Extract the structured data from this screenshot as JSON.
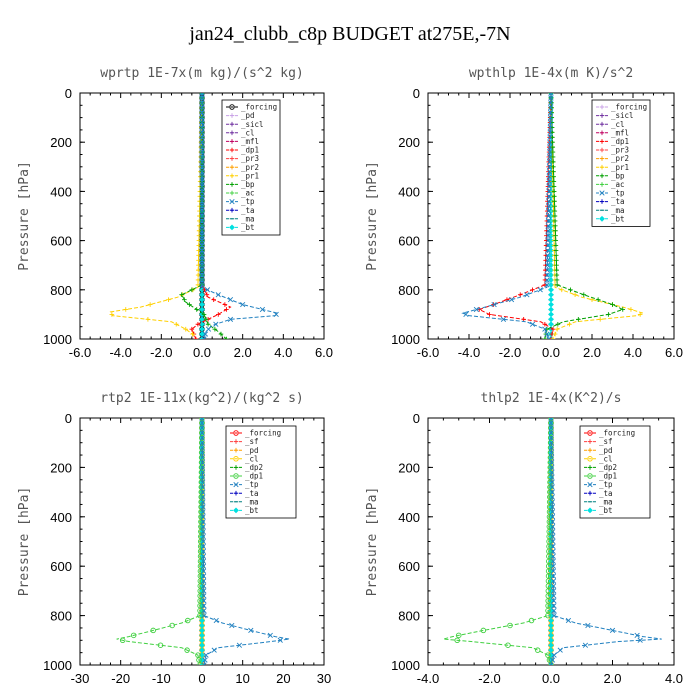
{
  "figure": {
    "title": "jan24_clubb_c8p  BUDGET at275E,-7N"
  },
  "chart_data": [
    {
      "type": "line",
      "title": "wprtp  1E-7x(m kg)/(s^2 kg)",
      "ylabel": "Pressure [hPa]",
      "xlabel": "",
      "xlim": [
        -6,
        6
      ],
      "ylim": [
        1000,
        0
      ],
      "xticks": [
        "-6.0",
        "-4.0",
        "-2.0",
        "0.0",
        "2.0",
        "4.0",
        "6.0"
      ],
      "yticks": [
        "0",
        "200",
        "400",
        "600",
        "800",
        "1000"
      ],
      "legend": [
        "_forcing",
        "_pd",
        "_sicl",
        "_cl",
        "_mfl",
        "_dp1",
        "_pr3",
        "_pr2",
        "_pr1",
        "_bp",
        "_ac",
        "_tp",
        "_ta",
        "_ma",
        "_bt"
      ],
      "series": [
        {
          "name": "_forcing",
          "color": "#000000",
          "marker": "o",
          "p": [
            0,
            500,
            780,
            850,
            900,
            950,
            1000
          ],
          "x": [
            0,
            0,
            0,
            0,
            0,
            0,
            0
          ]
        },
        {
          "name": "_pd",
          "color": "#c8a0e6",
          "marker": "+",
          "p": [
            0,
            780,
            870,
            950,
            1000
          ],
          "x": [
            0,
            0,
            0,
            0,
            0
          ]
        },
        {
          "name": "_sicl",
          "color": "#7030a0",
          "marker": "+",
          "p": [
            0,
            800,
            900,
            1000
          ],
          "x": [
            0,
            0,
            0,
            0
          ]
        },
        {
          "name": "_cl",
          "color": "#7030a0",
          "marker": "+",
          "p": [
            0,
            800,
            900,
            1000
          ],
          "x": [
            0,
            0,
            0,
            0
          ]
        },
        {
          "name": "_mfl",
          "color": "#c00060",
          "marker": "+",
          "p": [
            0,
            800,
            1000
          ],
          "x": [
            0,
            0,
            0
          ]
        },
        {
          "name": "_dp1",
          "color": "#ff0000",
          "marker": "+",
          "p": [
            0,
            780,
            830,
            870,
            900,
            940,
            960,
            1000
          ],
          "x": [
            0,
            0,
            0.3,
            1.4,
            0.8,
            -0.2,
            -0.5,
            -0.3
          ]
        },
        {
          "name": "_pr3",
          "color": "#ff4040",
          "marker": "+",
          "p": [
            0,
            800,
            1000
          ],
          "x": [
            0,
            0,
            0
          ]
        },
        {
          "name": "_pr2",
          "color": "#ffa000",
          "marker": "+",
          "p": [
            0,
            800,
            1000
          ],
          "x": [
            0,
            0,
            0
          ]
        },
        {
          "name": "_pr1",
          "color": "#ffd000",
          "marker": "+",
          "p": [
            0,
            790,
            830,
            870,
            890,
            905,
            930,
            960,
            990
          ],
          "x": [
            0,
            -0.2,
            -1.2,
            -3.0,
            -4.5,
            -4.4,
            -1.5,
            -0.8,
            -0.3
          ]
        },
        {
          "name": "_bp",
          "color": "#00a000",
          "marker": "+",
          "p": [
            0,
            780,
            820,
            850,
            900,
            940,
            970,
            1000
          ],
          "x": [
            0,
            0,
            -1.0,
            -0.8,
            0.1,
            0.3,
            0.8,
            1.2
          ]
        },
        {
          "name": "_ac",
          "color": "#40d040",
          "marker": "+",
          "p": [
            0,
            800,
            1000
          ],
          "x": [
            0,
            0,
            0
          ]
        },
        {
          "name": "_tp",
          "color": "#2080c0",
          "marker": "x",
          "p": [
            0,
            790,
            820,
            860,
            895,
            905,
            920,
            945,
            970,
            1000
          ],
          "x": [
            0,
            0,
            0.8,
            2.0,
            3.7,
            3.6,
            1.4,
            0.5,
            0.2,
            0.1
          ]
        },
        {
          "name": "_ta",
          "color": "#0000c0",
          "marker": "+",
          "p": [
            0,
            800,
            1000
          ],
          "x": [
            0,
            0,
            0
          ]
        },
        {
          "name": "_ma",
          "color": "#008080",
          "marker": "-",
          "p": [
            0,
            800,
            1000
          ],
          "x": [
            0,
            0,
            0
          ]
        },
        {
          "name": "_bt",
          "color": "#00e0e0",
          "marker": "d",
          "p": [
            0,
            800,
            1000
          ],
          "x": [
            0,
            0,
            0
          ]
        }
      ]
    },
    {
      "type": "line",
      "title": "wpthlp  1E-4x(m K)/s^2",
      "ylabel": "Pressure [hPa]",
      "xlabel": "",
      "xlim": [
        -6,
        6
      ],
      "ylim": [
        1000,
        0
      ],
      "xticks": [
        "-6.0",
        "-4.0",
        "-2.0",
        "0.0",
        "2.0",
        "4.0",
        "6.0"
      ],
      "yticks": [
        "0",
        "200",
        "400",
        "600",
        "800",
        "1000"
      ],
      "legend": [
        "_forcing",
        "_sicl",
        "_cl",
        "_mfl",
        "_dp1",
        "_pr3",
        "_pr2",
        "_pr1",
        "_bp",
        "_ac",
        "_tp",
        "_ta",
        "_ma",
        "_bt"
      ],
      "series": [
        {
          "name": "_forcing",
          "color": "#c8a0e6",
          "marker": "+",
          "p": [
            0,
            1000
          ],
          "x": [
            0,
            0
          ]
        },
        {
          "name": "_sicl",
          "color": "#7030a0",
          "marker": "+",
          "p": [
            0,
            1000
          ],
          "x": [
            0,
            0
          ]
        },
        {
          "name": "_cl",
          "color": "#7030a0",
          "marker": "+",
          "p": [
            0,
            1000
          ],
          "x": [
            0,
            0
          ]
        },
        {
          "name": "_mfl",
          "color": "#c00060",
          "marker": "+",
          "p": [
            0,
            1000
          ],
          "x": [
            0,
            0
          ]
        },
        {
          "name": "_dp1",
          "color": "#ff0000",
          "marker": "+",
          "p": [
            0,
            780,
            820,
            860,
            880,
            900,
            930,
            960,
            1000
          ],
          "x": [
            0,
            -0.3,
            -1.5,
            -2.8,
            -3.5,
            -3.0,
            -0.5,
            0.1,
            0
          ]
        },
        {
          "name": "_pr3",
          "color": "#ff4040",
          "marker": "+",
          "p": [
            0,
            1000
          ],
          "x": [
            0,
            0
          ]
        },
        {
          "name": "_pr2",
          "color": "#ffa000",
          "marker": "+",
          "p": [
            0,
            1000
          ],
          "x": [
            0,
            0
          ]
        },
        {
          "name": "_pr1",
          "color": "#ffd000",
          "marker": "+",
          "p": [
            0,
            790,
            830,
            870,
            895,
            905,
            930,
            960,
            1000
          ],
          "x": [
            0,
            0.2,
            1.5,
            3.5,
            4.5,
            4.2,
            1.2,
            0.3,
            0.1
          ]
        },
        {
          "name": "_bp",
          "color": "#00a000",
          "marker": "+",
          "p": [
            0,
            780,
            820,
            860,
            880,
            900,
            930,
            960,
            1000
          ],
          "x": [
            0,
            0.3,
            1.6,
            3.0,
            3.5,
            2.8,
            0.6,
            -0.2,
            -0.3
          ]
        },
        {
          "name": "_ac",
          "color": "#40d040",
          "marker": "+",
          "p": [
            0,
            1000
          ],
          "x": [
            0,
            0
          ]
        },
        {
          "name": "_tp",
          "color": "#2080c0",
          "marker": "x",
          "p": [
            0,
            790,
            830,
            870,
            895,
            905,
            930,
            960,
            1000
          ],
          "x": [
            0,
            -0.2,
            -1.5,
            -3.2,
            -4.3,
            -4.0,
            -1.2,
            -0.3,
            -0.1
          ]
        },
        {
          "name": "_ta",
          "color": "#0000c0",
          "marker": "+",
          "p": [
            0,
            1000
          ],
          "x": [
            0,
            0
          ]
        },
        {
          "name": "_ma",
          "color": "#008080",
          "marker": "-",
          "p": [
            0,
            1000
          ],
          "x": [
            0,
            0
          ]
        },
        {
          "name": "_bt",
          "color": "#00e0e0",
          "marker": "d",
          "p": [
            0,
            1000
          ],
          "x": [
            0,
            0
          ]
        }
      ]
    },
    {
      "type": "line",
      "title": "rtp2  1E-11x(kg^2)/(kg^2 s)",
      "ylabel": "Pressure [hPa]",
      "xlabel": "",
      "xlim": [
        -30,
        30
      ],
      "ylim": [
        1000,
        0
      ],
      "xticks": [
        "-30",
        "-20",
        "-10",
        "0",
        "10",
        "20",
        "30"
      ],
      "yticks": [
        "0",
        "200",
        "400",
        "600",
        "800",
        "1000"
      ],
      "legend": [
        "_forcing",
        "_sf",
        "_pd",
        "_cl",
        "_dp2",
        "_dp1",
        "_tp",
        "_ta",
        "_ma",
        "_bt"
      ],
      "series": [
        {
          "name": "_forcing",
          "color": "#ff0000",
          "marker": "o",
          "p": [
            0,
            1000
          ],
          "x": [
            0,
            0
          ]
        },
        {
          "name": "_sf",
          "color": "#ff4040",
          "marker": "+",
          "p": [
            0,
            1000
          ],
          "x": [
            0,
            0
          ]
        },
        {
          "name": "_pd",
          "color": "#ffa000",
          "marker": "+",
          "p": [
            0,
            1000
          ],
          "x": [
            0,
            0
          ]
        },
        {
          "name": "_cl",
          "color": "#ffd000",
          "marker": "o",
          "p": [
            0,
            1000
          ],
          "x": [
            0,
            0
          ]
        },
        {
          "name": "_dp2",
          "color": "#00a000",
          "marker": "+",
          "p": [
            0,
            1000
          ],
          "x": [
            0,
            0
          ]
        },
        {
          "name": "_dp1",
          "color": "#40d040",
          "marker": "o",
          "p": [
            0,
            800,
            830,
            860,
            885,
            895,
            905,
            930,
            960,
            1000
          ],
          "x": [
            0,
            -0.5,
            -5.0,
            -12.0,
            -18.0,
            -21.0,
            -18.0,
            -5.0,
            -1.0,
            -0.5
          ]
        },
        {
          "name": "_tp",
          "color": "#2080c0",
          "marker": "x",
          "p": [
            0,
            800,
            830,
            860,
            885,
            895,
            905,
            930,
            960,
            1000
          ],
          "x": [
            0,
            0.5,
            5.0,
            12.0,
            18.0,
            21.5,
            17.0,
            4.0,
            1.0,
            0.5
          ]
        },
        {
          "name": "_ta",
          "color": "#0000c0",
          "marker": "+",
          "p": [
            0,
            1000
          ],
          "x": [
            0,
            0
          ]
        },
        {
          "name": "_ma",
          "color": "#008080",
          "marker": "-",
          "p": [
            0,
            1000
          ],
          "x": [
            0,
            0
          ]
        },
        {
          "name": "_bt",
          "color": "#00e0e0",
          "marker": "d",
          "p": [
            0,
            1000
          ],
          "x": [
            0,
            0
          ]
        }
      ]
    },
    {
      "type": "line",
      "title": "thlp2  1E-4x(K^2)/s",
      "ylabel": "Pressure [hPa]",
      "xlabel": "",
      "xlim": [
        -4,
        4
      ],
      "ylim": [
        1000,
        0
      ],
      "xticks": [
        "-4.0",
        "-2.0",
        "0.0",
        "2.0",
        "4.0"
      ],
      "yticks": [
        "0",
        "200",
        "400",
        "600",
        "800",
        "1000"
      ],
      "legend": [
        "_forcing",
        "_sf",
        "_pd",
        "_cl",
        "_dp2",
        "_dp1",
        "_tp",
        "_ta",
        "_ma",
        "_bt"
      ],
      "series": [
        {
          "name": "_forcing",
          "color": "#ff0000",
          "marker": "o",
          "p": [
            0,
            1000
          ],
          "x": [
            0,
            0
          ]
        },
        {
          "name": "_sf",
          "color": "#ff4040",
          "marker": "+",
          "p": [
            0,
            1000
          ],
          "x": [
            0,
            0
          ]
        },
        {
          "name": "_pd",
          "color": "#ffa000",
          "marker": "+",
          "p": [
            0,
            1000
          ],
          "x": [
            0,
            0
          ]
        },
        {
          "name": "_cl",
          "color": "#ffd000",
          "marker": "o",
          "p": [
            0,
            1000
          ],
          "x": [
            0,
            0
          ]
        },
        {
          "name": "_dp2",
          "color": "#00a000",
          "marker": "+",
          "p": [
            0,
            1000
          ],
          "x": [
            0,
            0
          ]
        },
        {
          "name": "_dp1",
          "color": "#40d040",
          "marker": "o",
          "p": [
            0,
            800,
            830,
            860,
            885,
            895,
            905,
            930,
            960,
            1000
          ],
          "x": [
            0,
            -0.1,
            -0.9,
            -2.2,
            -3.2,
            -3.5,
            -2.6,
            -0.6,
            -0.1,
            0
          ]
        },
        {
          "name": "_tp",
          "color": "#2080c0",
          "marker": "x",
          "p": [
            0,
            800,
            830,
            860,
            885,
            895,
            905,
            930,
            960,
            1000
          ],
          "x": [
            0,
            0.1,
            0.8,
            2.0,
            3.0,
            3.6,
            2.2,
            0.4,
            0.1,
            0
          ]
        },
        {
          "name": "_ta",
          "color": "#0000c0",
          "marker": "+",
          "p": [
            0,
            1000
          ],
          "x": [
            0,
            0
          ]
        },
        {
          "name": "_ma",
          "color": "#008080",
          "marker": "-",
          "p": [
            0,
            1000
          ],
          "x": [
            0,
            0
          ]
        },
        {
          "name": "_bt",
          "color": "#00e0e0",
          "marker": "d",
          "p": [
            0,
            1000
          ],
          "x": [
            0,
            0
          ]
        }
      ]
    }
  ]
}
